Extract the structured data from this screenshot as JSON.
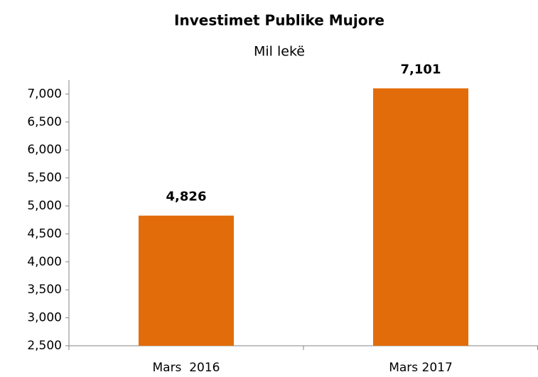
{
  "chart_data": {
    "type": "bar",
    "title": "Investimet Publike Mujore",
    "subtitle": "Mil lekë",
    "categories": [
      "Mars  2016",
      "Mars 2017"
    ],
    "values": [
      4826,
      7101
    ],
    "value_labels": [
      "4,826",
      "7,101"
    ],
    "color": "#e36c0a",
    "ylim": [
      2500,
      7250
    ],
    "yticks": [
      {
        "value": 2500,
        "label": "2,500"
      },
      {
        "value": 3000,
        "label": "3,000"
      },
      {
        "value": 3500,
        "label": "3,500"
      },
      {
        "value": 4000,
        "label": "4,000"
      },
      {
        "value": 4500,
        "label": "4,500"
      },
      {
        "value": 5000,
        "label": "5,000"
      },
      {
        "value": 5500,
        "label": "5,500"
      },
      {
        "value": 6000,
        "label": "6,000"
      },
      {
        "value": 6500,
        "label": "6,500"
      },
      {
        "value": 7000,
        "label": "7,000"
      }
    ],
    "grid": false
  }
}
